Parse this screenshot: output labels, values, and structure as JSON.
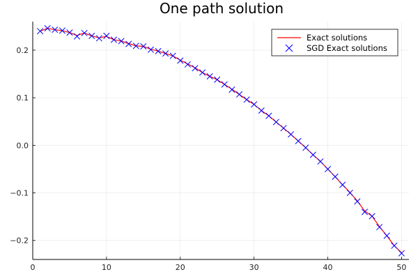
{
  "chart_data": {
    "type": "line",
    "title": "One path solution",
    "xlabel": "",
    "ylabel": "",
    "xlim": [
      0,
      51
    ],
    "ylim": [
      -0.24,
      0.26
    ],
    "xticks": [
      0,
      10,
      20,
      30,
      40,
      50
    ],
    "yticks": [
      -0.2,
      -0.1,
      0.0,
      0.1,
      0.2
    ],
    "ytick_labels": [
      "−0.2",
      "−0.1",
      "0.0",
      "0.1",
      "0.2"
    ],
    "grid": true,
    "legend_position": "top-right",
    "x": [
      1,
      2,
      3,
      4,
      5,
      6,
      7,
      8,
      9,
      10,
      11,
      12,
      13,
      14,
      15,
      16,
      17,
      18,
      19,
      20,
      21,
      22,
      23,
      24,
      25,
      26,
      27,
      28,
      29,
      30,
      31,
      32,
      33,
      34,
      35,
      36,
      37,
      38,
      39,
      40,
      41,
      42,
      43,
      44,
      45,
      46,
      47,
      48,
      49,
      50
    ],
    "series": [
      {
        "name": "Exact solutions",
        "style": "line",
        "color": "#ff0000",
        "values": [
          0.24,
          0.246,
          0.243,
          0.241,
          0.237,
          0.231,
          0.236,
          0.23,
          0.226,
          0.229,
          0.222,
          0.219,
          0.214,
          0.209,
          0.208,
          0.202,
          0.198,
          0.193,
          0.188,
          0.179,
          0.171,
          0.163,
          0.153,
          0.145,
          0.138,
          0.128,
          0.118,
          0.107,
          0.096,
          0.086,
          0.073,
          0.062,
          0.049,
          0.036,
          0.023,
          0.009,
          -0.005,
          -0.02,
          -0.034,
          -0.05,
          -0.066,
          -0.083,
          -0.099,
          -0.117,
          -0.138,
          -0.149,
          -0.171,
          -0.19,
          -0.211,
          -0.226
        ]
      },
      {
        "name": "SGD Exact solutions",
        "style": "marker-x",
        "color": "#0000ff",
        "values": [
          0.24,
          0.246,
          0.243,
          0.241,
          0.237,
          0.229,
          0.236,
          0.23,
          0.225,
          0.23,
          0.222,
          0.219,
          0.213,
          0.209,
          0.208,
          0.201,
          0.198,
          0.193,
          0.188,
          0.178,
          0.17,
          0.162,
          0.153,
          0.145,
          0.138,
          0.128,
          0.117,
          0.107,
          0.096,
          0.086,
          0.073,
          0.062,
          0.049,
          0.036,
          0.023,
          0.009,
          -0.005,
          -0.02,
          -0.034,
          -0.05,
          -0.066,
          -0.083,
          -0.1,
          -0.118,
          -0.14,
          -0.149,
          -0.172,
          -0.19,
          -0.211,
          -0.227
        ]
      }
    ]
  }
}
